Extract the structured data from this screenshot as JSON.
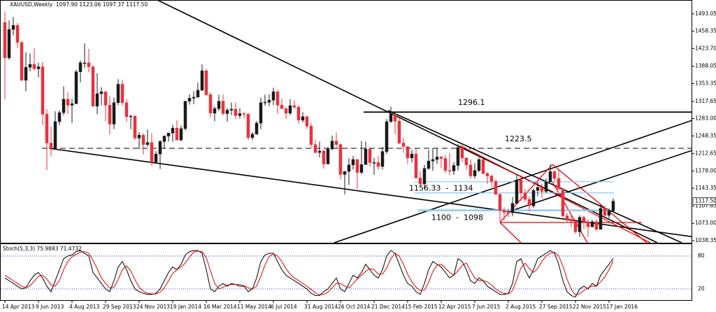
{
  "chart_data": [
    {
      "type": "candlestick",
      "title": "XAUUSD,Weekly  1097.90 1123.06 1097.37 1117.50",
      "x": [
        "14 Apr 2013",
        null,
        null,
        null,
        null,
        null,
        null,
        null,
        "9 Jun 2013",
        null,
        null,
        null,
        null,
        null,
        null,
        null,
        "4 Aug 2013",
        null,
        null,
        null,
        null,
        null,
        null,
        null,
        "29 Sep 2013",
        null,
        null,
        null,
        null,
        null,
        null,
        null,
        "24 Nov 2013",
        null,
        null,
        null,
        null,
        null,
        null,
        null,
        "19 Jan 2014",
        null,
        null,
        null,
        null,
        null,
        null,
        null,
        "16 Mar 2014",
        null,
        null,
        null,
        null,
        null,
        null,
        null,
        "11 May 2014",
        null,
        null,
        null,
        null,
        null,
        null,
        null,
        "6 Jul 2014",
        null,
        null,
        null,
        null,
        null,
        null,
        null,
        "31 Aug 2014",
        null,
        null,
        null,
        null,
        null,
        null,
        null,
        "26 Oct 2014",
        null,
        null,
        null,
        null,
        null,
        null,
        null,
        "21 Dec 2014",
        null,
        null,
        null,
        null,
        null,
        null,
        null,
        "15 Feb 2015",
        null,
        null,
        null,
        null,
        null,
        null,
        null,
        "12 Apr 2015",
        null,
        null,
        null,
        null,
        null,
        null,
        null,
        "7 Jun 2015",
        null,
        null,
        null,
        null,
        null,
        null,
        null,
        "2 Aug 2015",
        null,
        null,
        null,
        null,
        null,
        null,
        null,
        "27 Sep 2015",
        null,
        null,
        null,
        null,
        null,
        null,
        null,
        "22 Nov 2015",
        null,
        null,
        null,
        null,
        null,
        null,
        null,
        "17 Jan 2016",
        null
      ],
      "open": [
        1476,
        1405,
        1462,
        1470,
        1436,
        1360,
        1386,
        1392,
        1383,
        1387,
        1292,
        1234,
        1223,
        1277,
        1295,
        1322,
        1310,
        1313,
        1377,
        1395,
        1395,
        1387,
        1308,
        1333,
        1337,
        1310,
        1272,
        1315,
        1352,
        1315,
        1287,
        1288,
        1244,
        1250,
        1231,
        1235,
        1196,
        1212,
        1237,
        1248,
        1254,
        1264,
        1240,
        1263,
        1318,
        1324,
        1326,
        1340,
        1379,
        1331,
        1294,
        1303,
        1318,
        1293,
        1300,
        1302,
        1289,
        1293,
        1292,
        1245,
        1252,
        1274,
        1315,
        1316,
        1320,
        1337,
        1310,
        1303,
        1294,
        1309,
        1306,
        1280,
        1287,
        1268,
        1231,
        1215,
        1218,
        1192,
        1222,
        1238,
        1231,
        1171,
        1177,
        1190,
        1201,
        1175,
        1191,
        1222,
        1195,
        1195,
        1187,
        1217,
        1277,
        1292,
        1278,
        1234,
        1227,
        1204,
        1212,
        1164,
        1152,
        1183,
        1198,
        1201,
        1206,
        1203,
        1179,
        1178,
        1189,
        1225,
        1204,
        1190,
        1168,
        1179,
        1201,
        1173,
        1168,
        1157,
        1131,
        1099,
        1095,
        1094,
        1113,
        1160,
        1134,
        1121,
        1108,
        1139,
        1145,
        1137,
        1156,
        1177,
        1163,
        1142,
        1088,
        1081,
        1077,
        1056,
        1085,
        1075,
        1066,
        1076,
        1061,
        1103,
        1089,
        1097.9
      ],
      "high": [
        1498,
        1480,
        1487,
        1475,
        1438,
        1416,
        1414,
        1424,
        1395,
        1397,
        1302,
        1267,
        1298,
        1300,
        1348,
        1336,
        1323,
        1381,
        1400,
        1434,
        1423,
        1390,
        1374,
        1346,
        1337,
        1328,
        1325,
        1362,
        1361,
        1322,
        1291,
        1290,
        1256,
        1253,
        1261,
        1254,
        1218,
        1240,
        1249,
        1255,
        1271,
        1280,
        1269,
        1318,
        1332,
        1338,
        1355,
        1392,
        1383,
        1336,
        1308,
        1331,
        1331,
        1304,
        1315,
        1315,
        1304,
        1297,
        1294,
        1256,
        1278,
        1325,
        1331,
        1332,
        1345,
        1340,
        1323,
        1307,
        1322,
        1320,
        1310,
        1296,
        1288,
        1274,
        1240,
        1237,
        1221,
        1226,
        1249,
        1255,
        1233,
        1178,
        1204,
        1208,
        1202,
        1238,
        1237,
        1224,
        1204,
        1209,
        1226,
        1282,
        1307,
        1295,
        1284,
        1244,
        1227,
        1220,
        1223,
        1177,
        1190,
        1220,
        1224,
        1223,
        1208,
        1210,
        1214,
        1196,
        1232,
        1226,
        1205,
        1201,
        1194,
        1205,
        1203,
        1176,
        1170,
        1161,
        1133,
        1105,
        1103,
        1126,
        1170,
        1169,
        1142,
        1127,
        1143,
        1156,
        1152,
        1163,
        1191,
        1178,
        1180,
        1143,
        1094,
        1091,
        1081,
        1089,
        1088,
        1081,
        1080,
        1081,
        1112,
        1108,
        1103,
        1123.06
      ],
      "low": [
        1321,
        1401,
        1450,
        1424,
        1359,
        1338,
        1378,
        1380,
        1366,
        1270,
        1180,
        1207,
        1223,
        1270,
        1290,
        1292,
        1274,
        1312,
        1356,
        1385,
        1376,
        1307,
        1292,
        1310,
        1278,
        1251,
        1262,
        1310,
        1310,
        1277,
        1262,
        1240,
        1222,
        1211,
        1227,
        1188,
        1192,
        1182,
        1222,
        1237,
        1237,
        1240,
        1238,
        1259,
        1311,
        1312,
        1326,
        1338,
        1329,
        1286,
        1278,
        1298,
        1290,
        1277,
        1290,
        1282,
        1283,
        1284,
        1240,
        1240,
        1251,
        1262,
        1309,
        1308,
        1310,
        1293,
        1303,
        1282,
        1290,
        1302,
        1273,
        1275,
        1262,
        1225,
        1213,
        1205,
        1183,
        1191,
        1220,
        1225,
        1161,
        1131,
        1150,
        1181,
        1142,
        1172,
        1190,
        1187,
        1170,
        1180,
        1181,
        1212,
        1275,
        1252,
        1232,
        1215,
        1192,
        1195,
        1163,
        1147,
        1142,
        1180,
        1178,
        1192,
        1183,
        1174,
        1170,
        1170,
        1179,
        1196,
        1181,
        1162,
        1163,
        1176,
        1170,
        1152,
        1146,
        1130,
        1077,
        1080,
        1085,
        1087,
        1112,
        1118,
        1117,
        1098,
        1104,
        1127,
        1124,
        1133,
        1155,
        1156,
        1140,
        1085,
        1075,
        1065,
        1052,
        1046,
        1062,
        1046,
        1065,
        1058,
        1061,
        1082,
        1083,
        1097.37
      ],
      "close": [
        1405,
        1462,
        1470,
        1436,
        1360,
        1386,
        1392,
        1383,
        1387,
        1292,
        1234,
        1223,
        1277,
        1295,
        1322,
        1310,
        1313,
        1377,
        1395,
        1395,
        1387,
        1308,
        1333,
        1337,
        1310,
        1272,
        1315,
        1352,
        1315,
        1287,
        1288,
        1244,
        1250,
        1231,
        1235,
        1196,
        1212,
        1237,
        1248,
        1254,
        1264,
        1240,
        1263,
        1318,
        1324,
        1326,
        1340,
        1379,
        1331,
        1294,
        1303,
        1318,
        1293,
        1300,
        1302,
        1289,
        1293,
        1292,
        1245,
        1252,
        1274,
        1315,
        1316,
        1320,
        1337,
        1310,
        1303,
        1294,
        1309,
        1306,
        1280,
        1287,
        1268,
        1231,
        1215,
        1218,
        1192,
        1222,
        1238,
        1231,
        1171,
        1177,
        1190,
        1201,
        1175,
        1191,
        1222,
        1195,
        1195,
        1187,
        1217,
        1277,
        1292,
        1278,
        1234,
        1227,
        1204,
        1212,
        1164,
        1152,
        1183,
        1198,
        1201,
        1206,
        1203,
        1179,
        1178,
        1189,
        1225,
        1204,
        1190,
        1168,
        1179,
        1201,
        1173,
        1168,
        1157,
        1131,
        1099,
        1095,
        1094,
        1113,
        1160,
        1134,
        1121,
        1108,
        1139,
        1145,
        1137,
        1156,
        1177,
        1163,
        1142,
        1088,
        1081,
        1077,
        1056,
        1085,
        1075,
        1066,
        1076,
        1061,
        1103,
        1089,
        1097.9,
        1117.5
      ],
      "up_color": "#1a1a1a",
      "down_color": "#e8323c",
      "ylim": [
        1034,
        1521
      ],
      "yticks": [
        1493.05,
        1458.35,
        {
          "value": 1423.7,
          "label": "1423.70"
        },
        1388.05,
        1353.35,
        1317.65,
        {
          "value": 1283,
          "label": "1283.00"
        },
        1248.35,
        1212.65,
        {
          "value": 1178,
          "label": "1178.00"
        },
        1143.35,
        1107.65,
        {
          "value": 1073,
          "label": "1073.00"
        },
        1038.35
      ],
      "last_label": "1117.50",
      "levels": [
        1296.1,
        1223.5
      ],
      "zones": [
        {
          "label": "1156.33  -  1134",
          "upper": 1156.33,
          "lower": 1134
        },
        {
          "label": "1100  -  1098",
          "upper": 1100,
          "lower": 1098
        }
      ],
      "zone_color": "#8ec5f0"
    },
    {
      "type": "line",
      "title": "Stoch(5,3,3) 75.9883 71.4732",
      "series": [
        {
          "color": "#000000",
          "values": [
            40,
            35,
            30,
            25,
            20,
            22,
            35,
            45,
            50,
            40,
            25,
            15,
            35,
            55,
            75,
            80,
            82,
            88,
            90,
            85,
            80,
            50,
            40,
            30,
            20,
            15,
            35,
            60,
            70,
            55,
            35,
            20,
            15,
            12,
            10,
            10,
            12,
            20,
            35,
            50,
            60,
            55,
            65,
            82,
            88,
            90,
            90,
            85,
            55,
            20,
            15,
            25,
            30,
            25,
            30,
            28,
            25,
            25,
            15,
            20,
            40,
            70,
            82,
            85,
            85,
            70,
            55,
            45,
            40,
            35,
            30,
            25,
            20,
            12,
            8,
            8,
            15,
            20,
            30,
            40,
            20,
            15,
            30,
            45,
            40,
            50,
            65,
            55,
            45,
            40,
            55,
            80,
            90,
            85,
            65,
            45,
            30,
            25,
            15,
            10,
            30,
            55,
            70,
            65,
            60,
            50,
            40,
            45,
            75,
            70,
            55,
            35,
            30,
            40,
            35,
            25,
            20,
            15,
            10,
            10,
            12,
            30,
            70,
            75,
            55,
            40,
            55,
            75,
            80,
            85,
            90,
            85,
            65,
            35,
            15,
            8,
            5,
            20,
            25,
            20,
            30,
            25,
            45,
            55,
            65,
            75.9883
          ]
        },
        {
          "color": "#e00000",
          "values": [
            45,
            40,
            35,
            30,
            25,
            22,
            26,
            34,
            43,
            45,
            38,
            27,
            25,
            35,
            55,
            70,
            79,
            83,
            87,
            88,
            85,
            72,
            57,
            40,
            30,
            22,
            23,
            37,
            55,
            62,
            53,
            37,
            23,
            16,
            12,
            11,
            11,
            14,
            22,
            35,
            48,
            55,
            60,
            67,
            78,
            87,
            89,
            88,
            77,
            53,
            30,
            20,
            23,
            27,
            28,
            28,
            28,
            26,
            22,
            20,
            25,
            43,
            64,
            79,
            84,
            80,
            70,
            57,
            47,
            40,
            35,
            30,
            25,
            19,
            13,
            9,
            10,
            14,
            22,
            30,
            30,
            25,
            22,
            30,
            38,
            45,
            52,
            57,
            55,
            47,
            47,
            58,
            75,
            85,
            80,
            65,
            47,
            33,
            23,
            17,
            18,
            32,
            52,
            63,
            65,
            58,
            50,
            45,
            53,
            63,
            67,
            53,
            40,
            35,
            35,
            33,
            27,
            20,
            15,
            12,
            11,
            17,
            37,
            58,
            67,
            57,
            50,
            57,
            70,
            80,
            85,
            87,
            80,
            62,
            38,
            19,
            9,
            11,
            17,
            22,
            25,
            25,
            33,
            42,
            55,
            71.4732
          ]
        }
      ],
      "ylim": [
        0,
        100
      ],
      "yticks": [
        20,
        80
      ],
      "tick_color": "#3a3ad0"
    }
  ]
}
